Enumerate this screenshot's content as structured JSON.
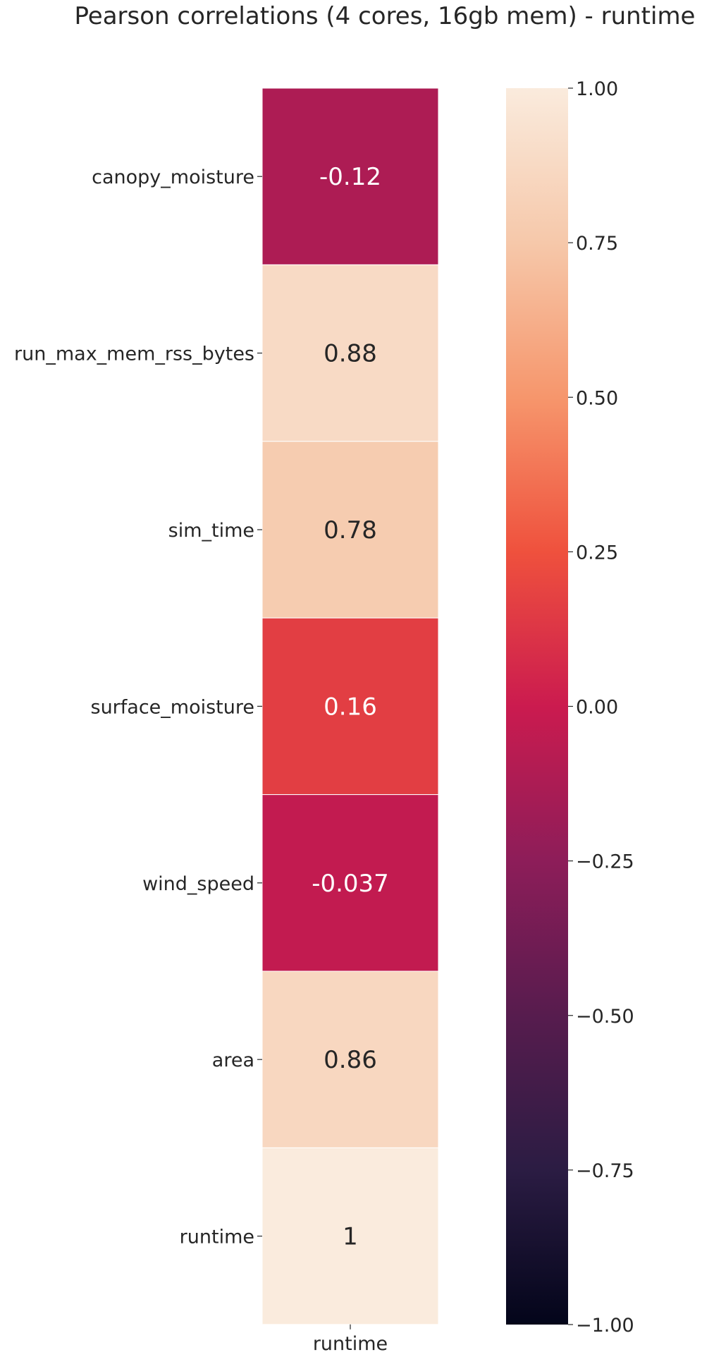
{
  "chart_data": {
    "type": "heatmap",
    "title": "Pearson correlations (4 cores, 16gb mem) - runtime",
    "rows": [
      "canopy_moisture",
      "run_max_mem_rss_bytes",
      "sim_time",
      "surface_moisture",
      "wind_speed",
      "area",
      "runtime"
    ],
    "columns": [
      "runtime"
    ],
    "values": [
      -0.12,
      0.88,
      0.78,
      0.16,
      -0.037,
      0.86,
      1
    ],
    "annotations": [
      "-0.12",
      "0.88",
      "0.78",
      "0.16",
      "-0.037",
      "0.86",
      "1"
    ],
    "colorbar": {
      "range": [
        -1.0,
        1.0
      ],
      "ticks": [
        1.0,
        0.75,
        0.5,
        0.25,
        0.0,
        -0.25,
        -0.5,
        -0.75,
        -1.0
      ],
      "tick_labels": [
        "1.00",
        "0.75",
        "0.50",
        "0.25",
        "0.00",
        "−0.25",
        "−0.50",
        "−0.75",
        "−1.00"
      ],
      "colormap": "rocket"
    },
    "grid": false
  }
}
